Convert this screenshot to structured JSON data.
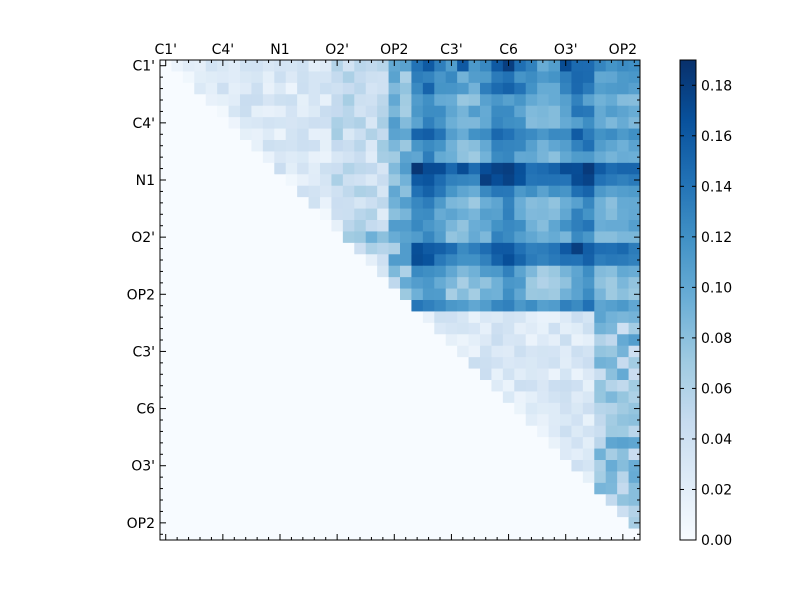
{
  "chart_data": {
    "type": "heatmap",
    "title": "",
    "xlabel": "",
    "ylabel": "",
    "colormap": "Blues",
    "colormap_stops": [
      "#f7fbff",
      "#deebf7",
      "#c6dbef",
      "#9ecae1",
      "#6baed6",
      "#4292c6",
      "#2171b5",
      "#08519c",
      "#08306b"
    ],
    "x_tick_labels": [
      "C1'",
      "C4'",
      "N1",
      "O2'",
      "OP2",
      "C3'",
      "C6",
      "O3'",
      "OP2"
    ],
    "y_tick_labels": [
      "C1'",
      "C4'",
      "N1",
      "O2'",
      "OP2",
      "C3'",
      "C6",
      "O3'",
      "OP2"
    ],
    "tick_positions": [
      0,
      5,
      10,
      15,
      20,
      25,
      30,
      35,
      40
    ],
    "matrix_size": 42,
    "vmin": 0.0,
    "vmax": 0.19,
    "colorbar_ticks": [
      "0.00",
      "0.02",
      "0.04",
      "0.06",
      "0.08",
      "0.10",
      "0.12",
      "0.14",
      "0.16",
      "0.18"
    ],
    "colorbar_values": [
      0,
      0.02,
      0.04,
      0.06,
      0.08,
      0.1,
      0.12,
      0.14,
      0.16,
      0.18
    ],
    "block_boundary_index": 22,
    "values_note_ul_block": "Upper-triangular light band, mostly 0.00-0.06; rows 0-21 x cols 22-41 strong block 0.08-0.19; rows 22-41 upper triangle 0.00-0.12",
    "row_strength_rows_0_21": [
      0.13,
      0.12,
      0.12,
      0.1,
      0.11,
      0.1,
      0.13,
      0.11,
      0.1,
      0.16,
      0.15,
      0.12,
      0.1,
      0.1,
      0.11,
      0.1,
      0.15,
      0.14,
      0.1,
      0.09,
      0.09,
      0.12
    ],
    "strong_row_col_peaks": [
      {
        "row": 0,
        "col": 30,
        "value": 0.18
      },
      {
        "row": 0,
        "col": 26,
        "value": 0.16
      },
      {
        "row": 0,
        "col": 35,
        "value": 0.17
      },
      {
        "row": 9,
        "col": 30,
        "value": 0.18
      },
      {
        "row": 9,
        "col": 26,
        "value": 0.17
      },
      {
        "row": 9,
        "col": 35,
        "value": 0.17
      },
      {
        "row": 10,
        "col": 28,
        "value": 0.18
      },
      {
        "row": 16,
        "col": 29,
        "value": 0.16
      },
      {
        "row": 16,
        "col": 35,
        "value": 0.16
      }
    ]
  }
}
